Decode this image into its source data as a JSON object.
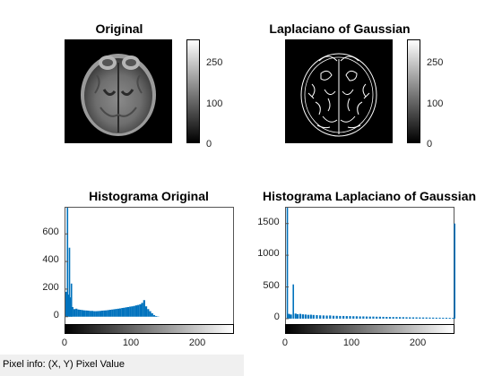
{
  "panels": {
    "original": {
      "title": "Original",
      "colorbar_ticks": [
        "250",
        "100",
        "0"
      ]
    },
    "log": {
      "title": "Laplaciano of Gaussian",
      "colorbar_ticks": [
        "250",
        "100",
        "0"
      ]
    }
  },
  "chart_data": [
    {
      "type": "bar",
      "title": "Histograma Original",
      "xlabel": "",
      "ylabel": "",
      "xlim": [
        0,
        255
      ],
      "ylim": [
        -60,
        790
      ],
      "xticks": [
        "0",
        "100",
        "200"
      ],
      "yticks": [
        "0",
        "200",
        "400",
        "600"
      ],
      "color": "#0072bd",
      "spikes": [
        [
          2,
          790
        ],
        [
          5,
          500
        ],
        [
          8,
          240
        ]
      ],
      "bins": [
        [
          0,
          180
        ],
        [
          3,
          160
        ],
        [
          6,
          140
        ],
        [
          9,
          70
        ],
        [
          12,
          55
        ],
        [
          15,
          58
        ],
        [
          18,
          52
        ],
        [
          21,
          50
        ],
        [
          24,
          48
        ],
        [
          27,
          46
        ],
        [
          30,
          45
        ],
        [
          33,
          44
        ],
        [
          36,
          42
        ],
        [
          39,
          42
        ],
        [
          42,
          40
        ],
        [
          45,
          40
        ],
        [
          48,
          41
        ],
        [
          51,
          42
        ],
        [
          54,
          44
        ],
        [
          57,
          45
        ],
        [
          60,
          46
        ],
        [
          63,
          48
        ],
        [
          66,
          50
        ],
        [
          69,
          52
        ],
        [
          72,
          54
        ],
        [
          75,
          56
        ],
        [
          78,
          58
        ],
        [
          81,
          60
        ],
        [
          84,
          63
        ],
        [
          87,
          65
        ],
        [
          90,
          68
        ],
        [
          93,
          70
        ],
        [
          96,
          73
        ],
        [
          99,
          75
        ],
        [
          102,
          78
        ],
        [
          105,
          82
        ],
        [
          108,
          85
        ],
        [
          111,
          90
        ],
        [
          114,
          100
        ],
        [
          117,
          120
        ],
        [
          120,
          75
        ],
        [
          123,
          55
        ],
        [
          126,
          40
        ],
        [
          129,
          25
        ],
        [
          132,
          12
        ],
        [
          135,
          5
        ],
        [
          138,
          2
        ]
      ]
    },
    {
      "type": "bar",
      "title": "Histograma Laplaciano of Gaussian",
      "xlabel": "",
      "ylabel": "",
      "xlim": [
        0,
        255
      ],
      "ylim": [
        -100,
        1750
      ],
      "xticks": [
        "0",
        "100",
        "200"
      ],
      "yticks": [
        "0",
        "500",
        "1000",
        "1500"
      ],
      "color": "#0072bd",
      "spikes": [
        [
          1,
          1750
        ],
        [
          10,
          540
        ],
        [
          254,
          1500
        ]
      ],
      "bins": [
        [
          3,
          75
        ],
        [
          6,
          65
        ],
        [
          13,
          80
        ],
        [
          16,
          70
        ],
        [
          20,
          75
        ],
        [
          24,
          68
        ],
        [
          28,
          65
        ],
        [
          32,
          60
        ],
        [
          36,
          62
        ],
        [
          40,
          58
        ],
        [
          45,
          55
        ],
        [
          50,
          52
        ],
        [
          55,
          50
        ],
        [
          60,
          48
        ],
        [
          65,
          50
        ],
        [
          70,
          45
        ],
        [
          75,
          44
        ],
        [
          80,
          42
        ],
        [
          85,
          42
        ],
        [
          90,
          40
        ],
        [
          95,
          40
        ],
        [
          100,
          38
        ],
        [
          105,
          37
        ],
        [
          110,
          35
        ],
        [
          115,
          35
        ],
        [
          120,
          33
        ],
        [
          125,
          32
        ],
        [
          130,
          32
        ],
        [
          135,
          30
        ],
        [
          140,
          30
        ],
        [
          145,
          28
        ],
        [
          150,
          27
        ],
        [
          155,
          26
        ],
        [
          160,
          25
        ],
        [
          165,
          25
        ],
        [
          170,
          24
        ],
        [
          175,
          23
        ],
        [
          180,
          22
        ],
        [
          185,
          21
        ],
        [
          190,
          20
        ],
        [
          195,
          20
        ],
        [
          200,
          19
        ],
        [
          205,
          18
        ],
        [
          210,
          18
        ],
        [
          215,
          17
        ],
        [
          220,
          16
        ],
        [
          225,
          15
        ],
        [
          230,
          15
        ],
        [
          235,
          14
        ],
        [
          240,
          14
        ],
        [
          245,
          13
        ],
        [
          250,
          12
        ]
      ]
    }
  ],
  "status": {
    "text": "Pixel info: (X, Y)  Pixel Value"
  }
}
